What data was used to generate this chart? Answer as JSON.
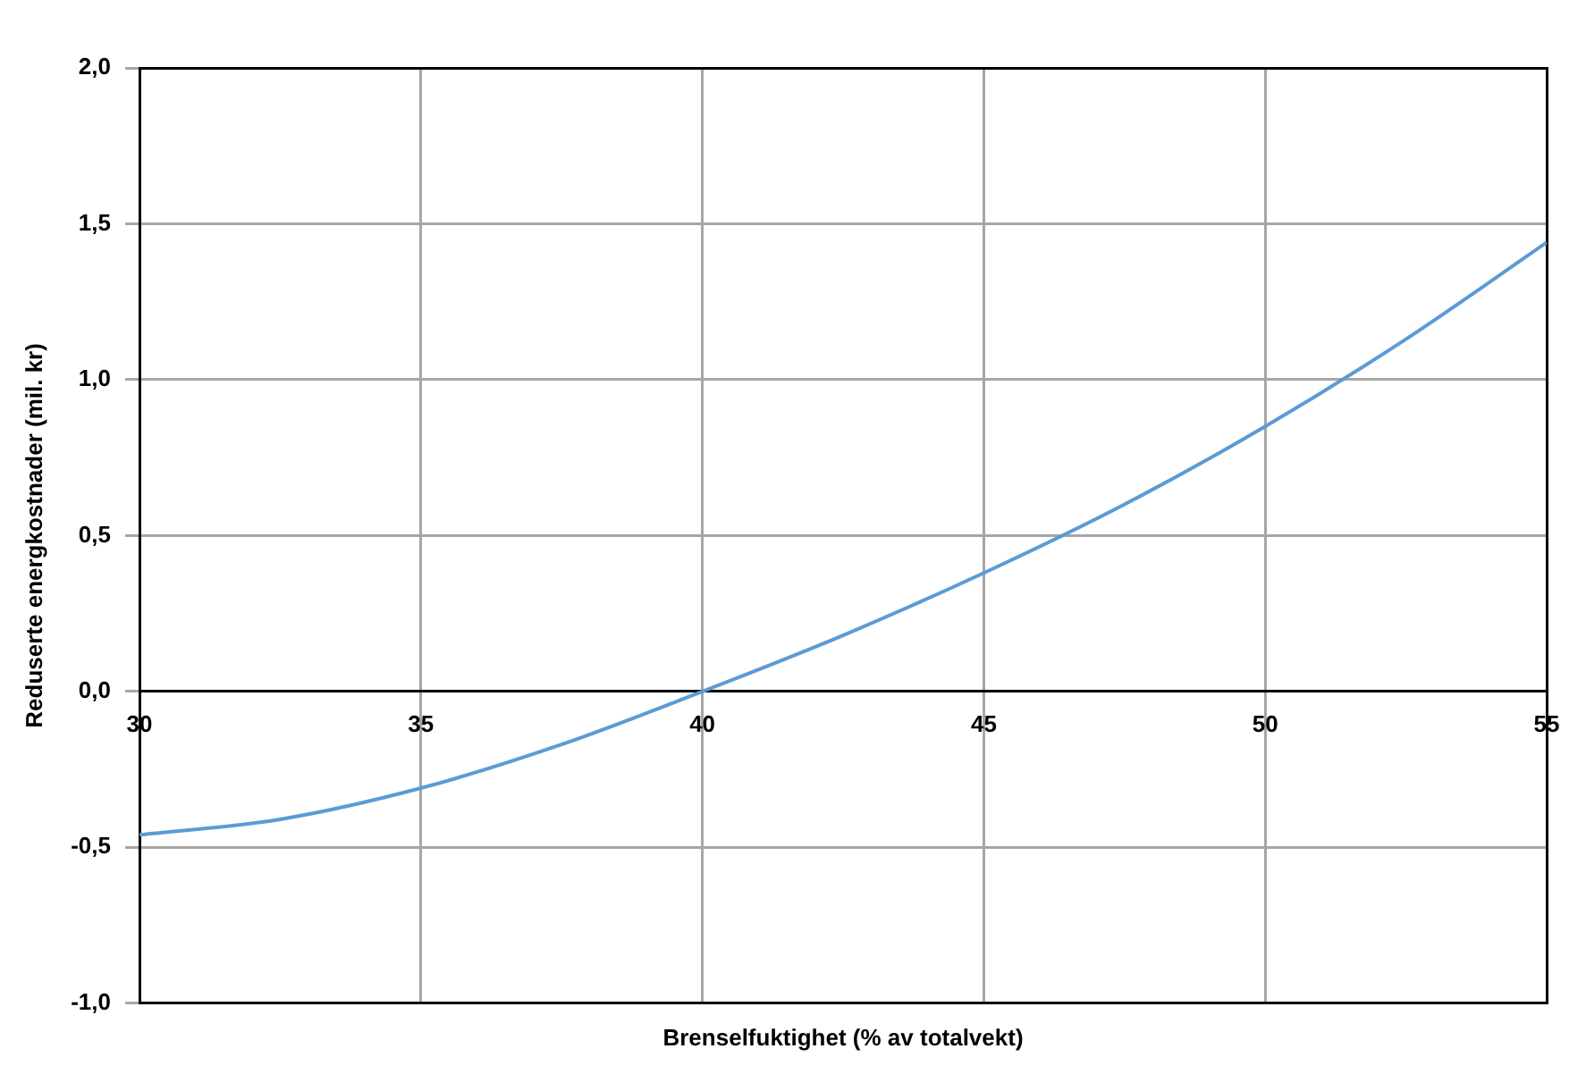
{
  "chart_data": {
    "type": "line",
    "xlabel": "Brenselfuktighet (% av totalvekt)",
    "ylabel": "Reduserte energkostnader (mil. kr)",
    "x": [
      30,
      32.5,
      35,
      37.5,
      40,
      42.5,
      45,
      47.5,
      50,
      52.5,
      55
    ],
    "series": [
      {
        "color": "#5b9bd5",
        "values": [
          -0.46,
          -0.41,
          -0.31,
          -0.17,
          0.0,
          0.18,
          0.38,
          0.6,
          0.85,
          1.13,
          1.44
        ]
      }
    ],
    "xlim": [
      30,
      55
    ],
    "xticks": [
      30,
      35,
      40,
      45,
      50,
      55
    ],
    "ylim": [
      -1,
      2
    ],
    "yticks": [
      {
        "value": -1,
        "label": "-1,0"
      },
      {
        "value": -0.5,
        "label": "-0,5"
      },
      {
        "value": 0,
        "label": "0,0"
      },
      {
        "value": 0.5,
        "label": "0,5"
      },
      {
        "value": 1,
        "label": "1,0"
      },
      {
        "value": 1.5,
        "label": "1,5"
      },
      {
        "value": 2,
        "label": "2,0"
      }
    ],
    "grid": true,
    "legend": false,
    "marker": "none",
    "line_style": "solid"
  }
}
